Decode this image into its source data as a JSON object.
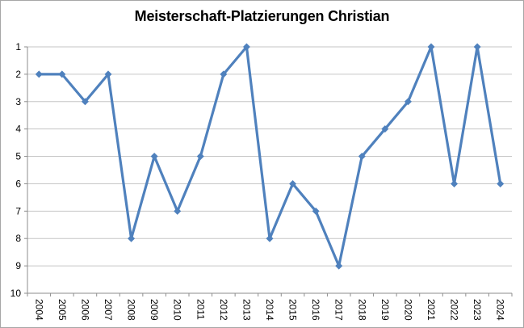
{
  "chart_title": "Meisterschaft-Platzierungen Christian",
  "chart_data": {
    "type": "line",
    "title": "Meisterschaft-Platzierungen Christian",
    "categories": [
      "2004",
      "2005",
      "2006",
      "2007",
      "2008",
      "2009",
      "2010",
      "2011",
      "2012",
      "2013",
      "2014",
      "2015",
      "2016",
      "2017",
      "2018",
      "2019",
      "2020",
      "2021",
      "2022",
      "2023",
      "2024"
    ],
    "values": [
      2,
      2,
      3,
      2,
      8,
      5,
      7,
      5,
      2,
      1,
      8,
      6,
      7,
      9,
      5,
      4,
      3,
      1,
      6,
      1,
      6
    ],
    "xlabel": "",
    "ylabel": "",
    "ylim": [
      1,
      10
    ],
    "y_ticks": [
      1,
      2,
      3,
      4,
      5,
      6,
      7,
      8,
      9,
      10
    ],
    "y_axis_reversed": true,
    "grid": "horizontal",
    "legend": "none",
    "x_tick_label_rotation_deg": 90,
    "colors": {
      "line": "#4F81BD",
      "marker": "#4F81BD",
      "gridline": "#C6C6C6",
      "axis": "#8E8E8E",
      "tick_label": "#000000",
      "frame_border": "#A6A6A6",
      "background": "#FFFFFF"
    }
  }
}
